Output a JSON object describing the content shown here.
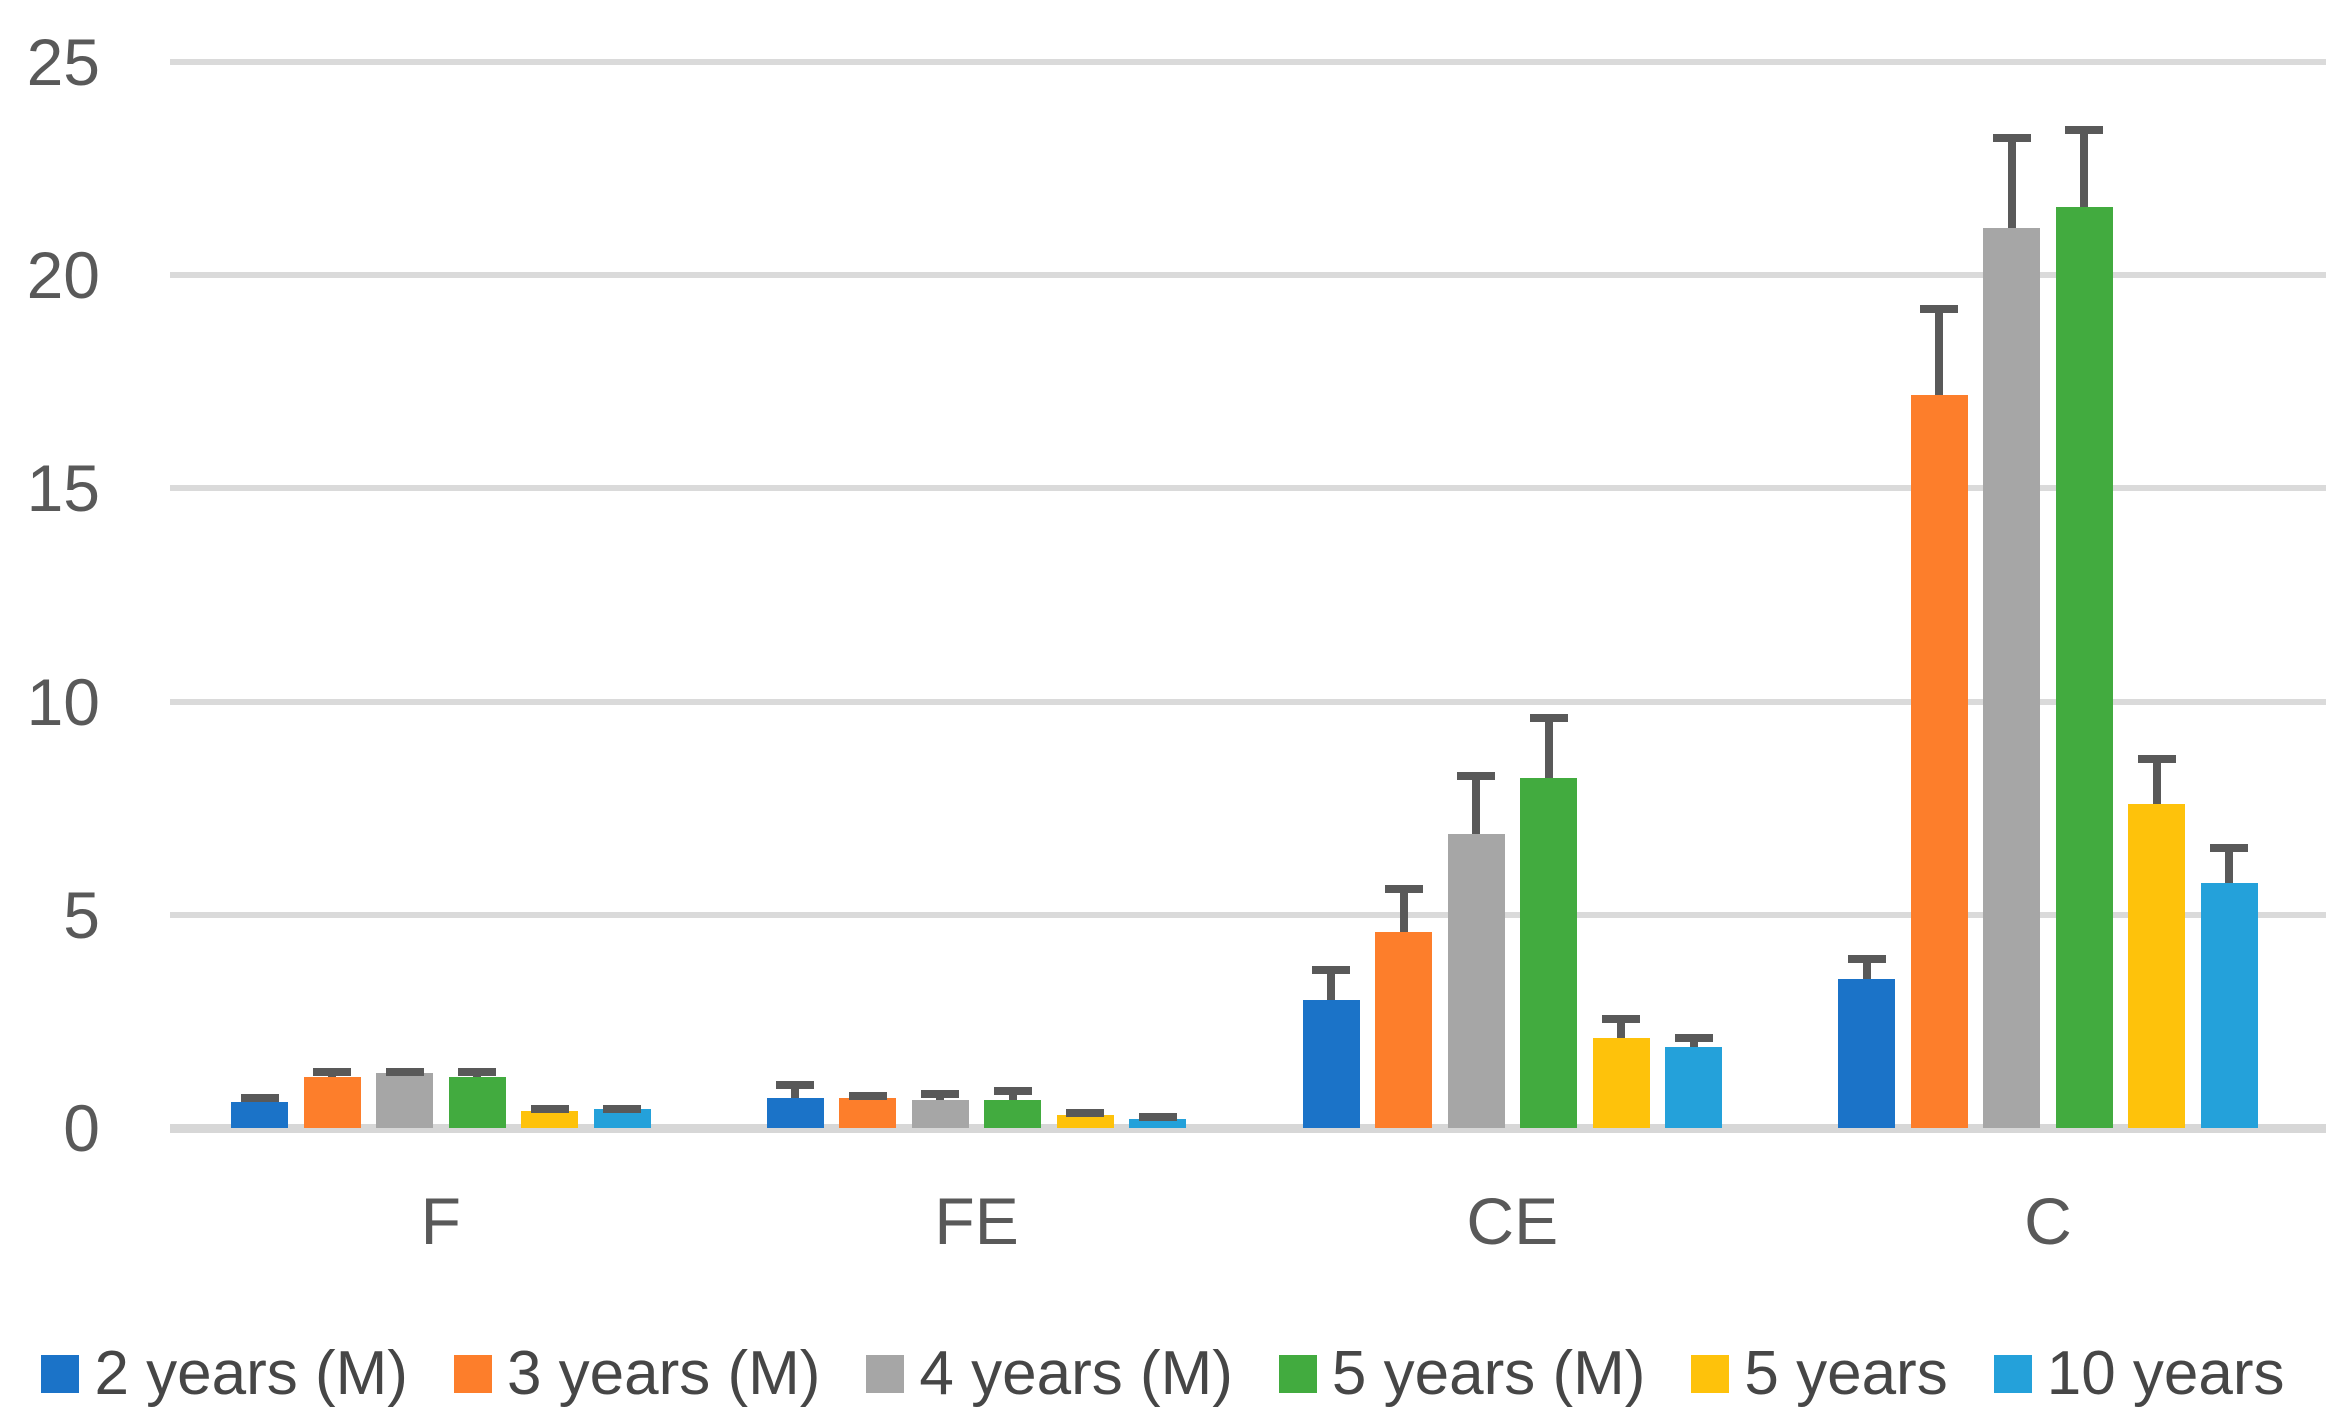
{
  "chart_data": {
    "type": "bar",
    "title": "",
    "categories": [
      "F",
      "FE",
      "CE",
      "C"
    ],
    "series": [
      {
        "name": "2 years (M)",
        "color": "#1B73C8",
        "values": [
          0.6,
          0.7,
          3.0,
          3.5
        ],
        "errors_plus": [
          0.2,
          0.4,
          0.8,
          0.55
        ]
      },
      {
        "name": "3 years (M)",
        "color": "#FD7E2B",
        "values": [
          1.2,
          0.7,
          4.6,
          17.2
        ],
        "errors_plus": [
          0.2,
          0.15,
          1.1,
          2.1
        ]
      },
      {
        "name": "4 years (M)",
        "color": "#A6A6A6",
        "values": [
          1.3,
          0.65,
          6.9,
          21.1
        ],
        "errors_plus": [
          0.1,
          0.25,
          1.45,
          2.2
        ]
      },
      {
        "name": "5 years (M)",
        "color": "#42AB3F",
        "values": [
          1.2,
          0.65,
          8.2,
          21.6
        ],
        "errors_plus": [
          0.2,
          0.3,
          1.5,
          1.9
        ]
      },
      {
        "name": "5 years",
        "color": "#FEC20B",
        "values": [
          0.4,
          0.3,
          2.1,
          7.6
        ],
        "errors_plus": [
          0.15,
          0.15,
          0.55,
          1.15
        ]
      },
      {
        "name": "10 years",
        "color": "#24A1DA",
        "values": [
          0.45,
          0.2,
          1.9,
          5.75
        ],
        "errors_plus": [
          0.1,
          0.15,
          0.3,
          0.9
        ]
      }
    ],
    "y_axis": {
      "min": 0,
      "max": 25,
      "tick_step": 5,
      "ticks": [
        0,
        5,
        10,
        15,
        20,
        25
      ]
    },
    "x_axis": {
      "labels": [
        "F",
        "FE",
        "CE",
        "C"
      ]
    },
    "grid": true,
    "error_bars": "upper",
    "legend_position": "bottom"
  },
  "colors": {
    "gridline": "#DADADA",
    "axis_line": "#D7D7D7",
    "error_bar": "#595959",
    "tick_label_text": "#595959",
    "category_label_text": "#595959",
    "legend_text": "#464646",
    "background": "#FFFFFF"
  }
}
